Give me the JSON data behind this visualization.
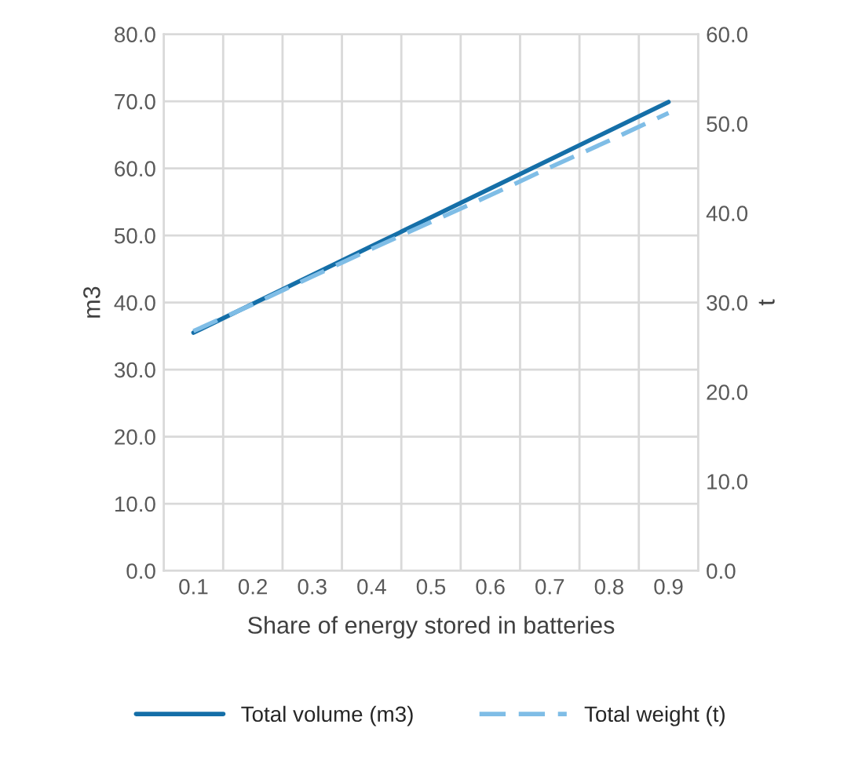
{
  "chart_data": {
    "type": "line",
    "xlabel": "Share of energy stored in batteries",
    "ylabel": "m3",
    "y2label": "t",
    "categories": [
      "0.1",
      "0.2",
      "0.3",
      "0.4",
      "0.5",
      "0.6",
      "0.7",
      "0.8",
      "0.9"
    ],
    "series": [
      {
        "name": "Total volume (m3)",
        "color": "#156fa8",
        "line_style": "solid",
        "values": [
          35.5,
          39.8,
          44.1,
          48.4,
          52.7,
          57.0,
          61.3,
          65.6,
          69.9
        ]
      },
      {
        "name": "Total weight (t)",
        "color": "#7fbde6",
        "line_style": "dashed",
        "axis": "y2",
        "values": [
          26.8,
          29.8,
          32.9,
          36.0,
          39.0,
          42.0,
          45.1,
          48.1,
          51.2
        ]
      }
    ],
    "ylim": [
      0,
      80
    ],
    "yticks": [
      {
        "value": 0,
        "label": "0.0"
      },
      {
        "value": 10,
        "label": "10.0"
      },
      {
        "value": 20,
        "label": "20.0"
      },
      {
        "value": 30,
        "label": "30.0"
      },
      {
        "value": 40,
        "label": "40.0"
      },
      {
        "value": 50,
        "label": "50.0"
      },
      {
        "value": 60,
        "label": "60.0"
      },
      {
        "value": 70,
        "label": "70.0"
      },
      {
        "value": 80,
        "label": "80.0"
      }
    ],
    "y2lim": [
      0,
      60
    ],
    "y2ticks": [
      {
        "value": 0,
        "label": "0.0"
      },
      {
        "value": 10,
        "label": "10.0"
      },
      {
        "value": 20,
        "label": "20.0"
      },
      {
        "value": 30,
        "label": "30.0"
      },
      {
        "value": 40,
        "label": "40.0"
      },
      {
        "value": 50,
        "label": "50.0"
      },
      {
        "value": 60,
        "label": "60.0"
      }
    ],
    "grid": true,
    "legend": "bottom"
  }
}
